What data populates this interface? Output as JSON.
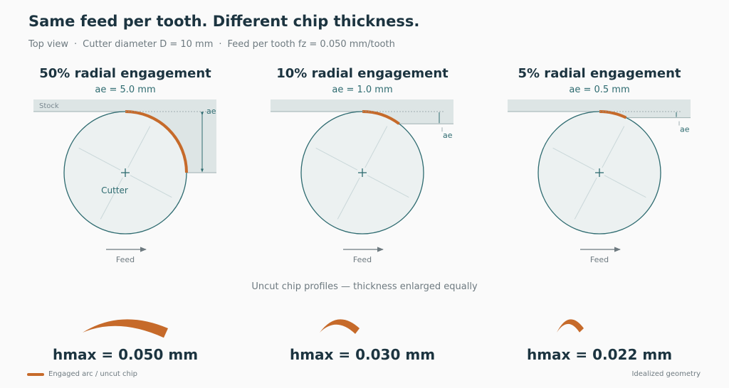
{
  "header": {
    "title": "Same feed per tooth. Different chip thickness.",
    "subtitle_parts": [
      "Top view",
      "Cutter diameter D = 10 mm",
      "Feed per tooth fz = 0.050 mm/tooth"
    ],
    "separator": "·"
  },
  "parameters": {
    "cutter_diameter_mm": 10,
    "feed_per_tooth_mm": 0.05
  },
  "panels": [
    {
      "title": "50% radial engagement",
      "subtitle": "ae = 5.0 mm",
      "engagement_fraction": 0.5,
      "ae_mm": 5.0,
      "stock_label": "Stock",
      "ae_label": "ae",
      "cutter_label": "Cutter",
      "feed_label": "Feed",
      "hmax": "hmax = 0.050 mm",
      "hmax_mm": 0.05
    },
    {
      "title": "10% radial engagement",
      "subtitle": "ae = 1.0 mm",
      "engagement_fraction": 0.1,
      "ae_mm": 1.0,
      "stock_label": "",
      "ae_label": "ae",
      "cutter_label": "",
      "feed_label": "Feed",
      "hmax": "hmax = 0.030 mm",
      "hmax_mm": 0.03
    },
    {
      "title": "5% radial engagement",
      "subtitle": "ae = 0.5 mm",
      "engagement_fraction": 0.05,
      "ae_mm": 0.5,
      "stock_label": "",
      "ae_label": "ae",
      "cutter_label": "",
      "feed_label": "Feed",
      "hmax": "hmax = 0.022 mm",
      "hmax_mm": 0.022
    }
  ],
  "chip_caption": "Uncut chip profiles — thickness enlarged equally",
  "legend": {
    "label": "Engaged arc / uncut chip"
  },
  "footnote": "Idealized geometry",
  "colors": {
    "chip": "#c66a2a",
    "stock": "#dde5e5",
    "cutter_fill": "#ecf1f1",
    "cutter_stroke": "#2e6b70",
    "text_dark": "#1c3440",
    "text_muted": "#6e7a80"
  }
}
